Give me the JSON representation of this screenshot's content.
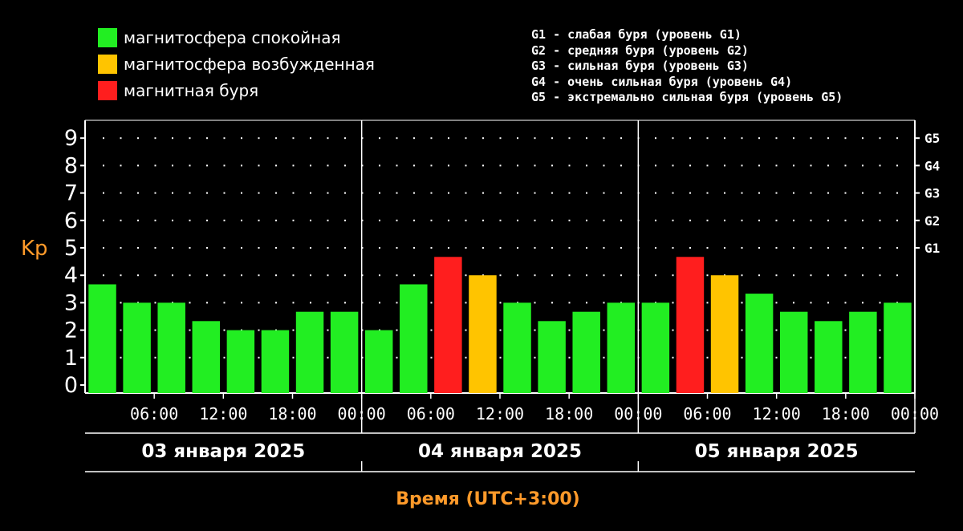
{
  "legend": {
    "items": [
      {
        "label": "магнитосфера спокойная",
        "color": "#22ee22"
      },
      {
        "label": "магнитосфера возбужденная",
        "color": "#ffc400"
      },
      {
        "label": "магнитная буря",
        "color": "#ff1e1e"
      }
    ]
  },
  "g_levels": [
    "G1 - слабая буря (уровень G1)",
    "G2 - средняя буря (уровень G2)",
    "G3 - сильная буря (уровень G3)",
    "G4 - очень сильная буря (уровень G4)",
    "G5 - экстремально сильная буря (уровень G5)"
  ],
  "chart_data": {
    "type": "bar",
    "ylabel": "Kp",
    "xlabel": "Время (UTC+3:00)",
    "ylim": [
      0,
      9
    ],
    "y_ticks": [
      "0",
      "1",
      "2",
      "3",
      "4",
      "5",
      "6",
      "7",
      "8",
      "9"
    ],
    "right_ticks": [
      {
        "label": "G1",
        "value": 5
      },
      {
        "label": "G2",
        "value": 6
      },
      {
        "label": "G3",
        "value": 7
      },
      {
        "label": "G4",
        "value": 8
      },
      {
        "label": "G5",
        "value": 9
      }
    ],
    "bins_per_day": 8,
    "time_ticks": [
      "06:00",
      "12:00",
      "18:00",
      "00:00",
      "06:00",
      "12:00",
      "18:00",
      "00:00",
      "06:00",
      "12:00",
      "18:00",
      "00:00"
    ],
    "days": [
      "03 января 2025",
      "04 января 2025",
      "05 января 2025"
    ],
    "values": [
      3.67,
      3,
      3,
      2.33,
      2,
      2,
      2.67,
      2.67,
      2,
      3.67,
      4.67,
      4,
      3,
      2.33,
      2.67,
      3,
      3,
      4.67,
      4,
      3.33,
      2.67,
      2.33,
      2.67,
      3
    ],
    "levels": [
      "quiet",
      "quiet",
      "quiet",
      "quiet",
      "quiet",
      "quiet",
      "quiet",
      "quiet",
      "quiet",
      "quiet",
      "storm",
      "active",
      "quiet",
      "quiet",
      "quiet",
      "quiet",
      "quiet",
      "storm",
      "active",
      "quiet",
      "quiet",
      "quiet",
      "quiet",
      "quiet"
    ],
    "level_colors": {
      "quiet": "#22ee22",
      "active": "#ffc400",
      "storm": "#ff1e1e"
    },
    "grid": true,
    "legend_position": "top-left"
  },
  "colors": {
    "background": "#000000",
    "axis": "#ffffff",
    "grid_dots": "#ffffff",
    "kp_label": "#ff9a2a",
    "time_label": "#ff9a2a"
  }
}
